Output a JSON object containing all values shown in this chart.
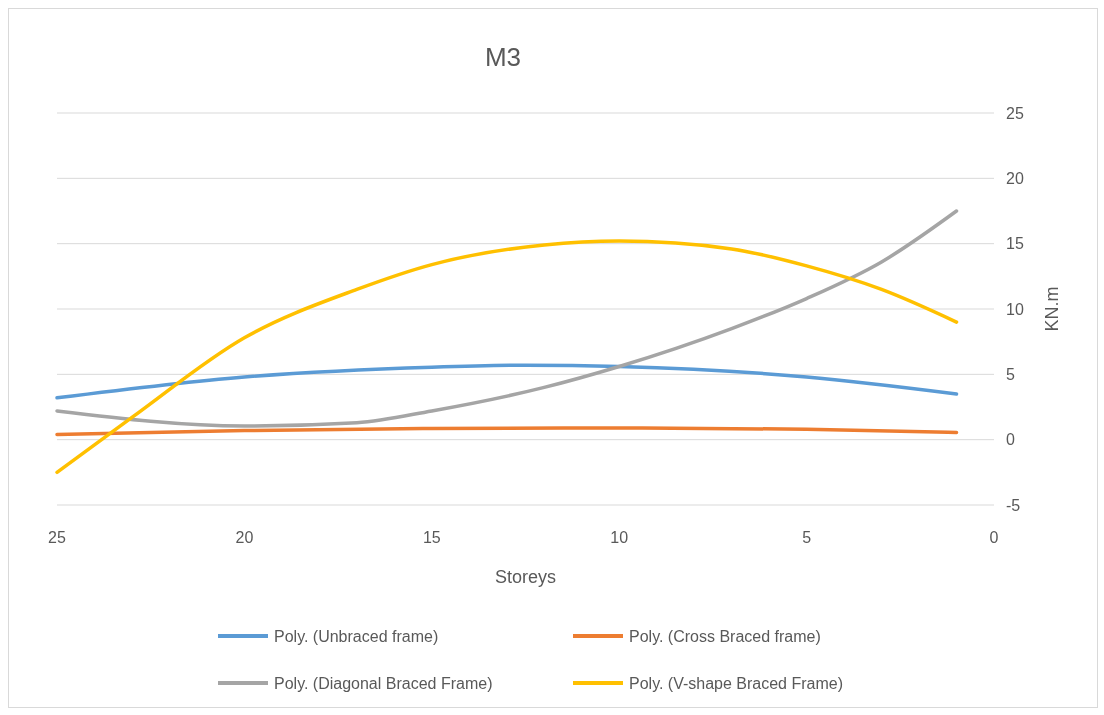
{
  "chart_data": {
    "type": "line",
    "title": "M3",
    "xlabel": "Storeys",
    "ylabel": "KN.m",
    "xlim": [
      25,
      0
    ],
    "xticks": [
      25,
      20,
      15,
      10,
      5,
      0
    ],
    "ylim": [
      -5,
      25
    ],
    "yticks": [
      -5,
      0,
      5,
      10,
      15,
      20,
      25
    ],
    "grid": "y",
    "legend": "bottom",
    "marker": "none",
    "line_style": "solid",
    "series": [
      {
        "name": "Poly. (Unbraced frame)",
        "color": "#5b9bd5",
        "x": [
          25,
          20,
          15,
          12.5,
          10,
          5,
          1
        ],
        "values": [
          3.2,
          4.8,
          5.55,
          5.7,
          5.6,
          4.8,
          3.5
        ]
      },
      {
        "name": "Poly. (Cross Braced frame)",
        "color": "#ed7d31",
        "x": [
          25,
          20,
          15,
          10,
          5,
          1
        ],
        "values": [
          0.4,
          0.7,
          0.85,
          0.9,
          0.8,
          0.55
        ]
      },
      {
        "name": "Poly. (Diagonal Braced Frame)",
        "color": "#a5a5a5",
        "x": [
          25,
          20,
          17,
          15,
          12,
          10,
          7,
          5,
          3,
          1
        ],
        "values": [
          2.2,
          1.05,
          1.3,
          2.2,
          4.0,
          5.6,
          8.5,
          10.8,
          13.6,
          17.5
        ]
      },
      {
        "name": "Poly. (V-shape Braced Frame)",
        "color": "#ffc000",
        "x": [
          25,
          23,
          20,
          17,
          15,
          12,
          10,
          7,
          5,
          3,
          1
        ],
        "values": [
          -2.5,
          1.7,
          7.8,
          11.5,
          13.4,
          14.9,
          15.2,
          14.6,
          13.3,
          11.5,
          9.0
        ]
      }
    ]
  }
}
